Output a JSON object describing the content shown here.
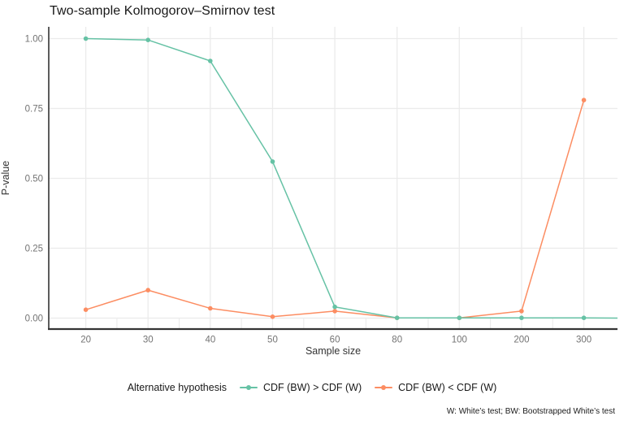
{
  "title": "Two-sample Kolmogorov–Smirnov test",
  "caption": "W: White’s test; BW: Bootstrapped White’s test",
  "chart_data": {
    "type": "line",
    "title": "Two-sample Kolmogorov–Smirnov test",
    "xlabel": "Sample size",
    "ylabel": "P-value",
    "x_categories": [
      "20",
      "30",
      "40",
      "50",
      "60",
      "80",
      "100",
      "200",
      "300"
    ],
    "x_scale_note": "categorical/equal spacing between labeled sample sizes",
    "y_ticks": [
      "1.00",
      "0.75",
      "0.50",
      "0.25",
      "0.00"
    ],
    "ylim": [
      0,
      1
    ],
    "grid": "major gridlines only, light gray; dark left and bottom axis lines",
    "legend_position": "bottom",
    "legend_title": "Alternative hypothesis",
    "series": [
      {
        "name": "CDF (BW) > CDF (W)",
        "color": "#66C2A5",
        "values": [
          1.0,
          0.995,
          0.92,
          0.56,
          0.04,
          0.001,
          0.001,
          0.001,
          0.001
        ],
        "extends_to_right_edge": true
      },
      {
        "name": "CDF (BW) < CDF (W)",
        "color": "#FC8D62",
        "values": [
          0.03,
          0.1,
          0.035,
          0.005,
          0.025,
          0.001,
          0.001,
          0.025,
          0.78
        ]
      }
    ]
  },
  "style_colors": {
    "gridline": "#ebebeb",
    "axis_line": "#343434",
    "tick_label": "#737373",
    "axis_title": "#333333",
    "title": "#181818"
  }
}
